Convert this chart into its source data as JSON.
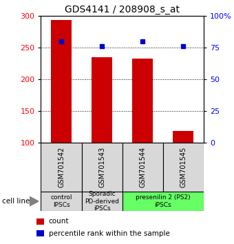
{
  "title": "GDS4141 / 208908_s_at",
  "samples": [
    "GSM701542",
    "GSM701543",
    "GSM701544",
    "GSM701545"
  ],
  "counts": [
    293,
    235,
    233,
    119
  ],
  "percentile_ranks": [
    80,
    76,
    80,
    76
  ],
  "ylim_left": [
    100,
    300
  ],
  "ylim_right": [
    0,
    100
  ],
  "yticks_left": [
    100,
    150,
    200,
    250,
    300
  ],
  "yticks_right": [
    0,
    25,
    50,
    75,
    100
  ],
  "ytick_labels_right": [
    "0",
    "25",
    "50",
    "75",
    "100%"
  ],
  "bar_color": "#cc0000",
  "marker_color": "#0000cc",
  "cell_groups": [
    {
      "label": "control\nIPSCs",
      "span": [
        0,
        1
      ],
      "color": "#d8d8d8"
    },
    {
      "label": "Sporadic\nPD-derived\niPSCs",
      "span": [
        1,
        2
      ],
      "color": "#d8d8d8"
    },
    {
      "label": "presenilin 2 (PS2)\niPSCs",
      "span": [
        2,
        4
      ],
      "color": "#66ff66"
    }
  ],
  "legend_items": [
    {
      "color": "#cc0000",
      "label": "count"
    },
    {
      "color": "#0000cc",
      "label": "percentile rank within the sample"
    }
  ],
  "cell_line_label": "cell line",
  "bar_width": 0.5,
  "title_fontsize": 10,
  "tick_fontsize": 8,
  "sample_fontsize": 7,
  "group_fontsize": 6.5,
  "legend_fontsize": 7.5
}
